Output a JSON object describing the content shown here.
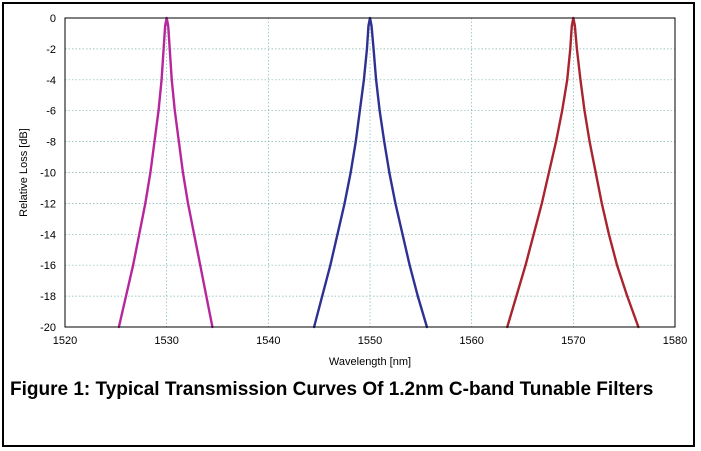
{
  "caption": "Figure 1: Typical Transmission Curves Of 1.2nm C-band Tunable Filters",
  "chart_data": {
    "type": "line",
    "title": "",
    "xlabel": "Wavelength [nm]",
    "ylabel": "Relative Loss [dB]",
    "xlim": [
      1520,
      1580
    ],
    "ylim": [
      -20,
      0
    ],
    "x_ticks": [
      1520,
      1530,
      1540,
      1550,
      1560,
      1570,
      1580
    ],
    "y_ticks": [
      0,
      -2,
      -4,
      -6,
      -8,
      -10,
      -12,
      -14,
      -16,
      -18,
      -20
    ],
    "grid": true,
    "legend": "none",
    "series": [
      {
        "color": "#b5279b",
        "x": [
          1525.3,
          1526.0,
          1526.7,
          1527.3,
          1527.9,
          1528.4,
          1528.8,
          1529.2,
          1529.5,
          1529.7,
          1529.85,
          1530.0,
          1530.15,
          1530.3,
          1530.5,
          1530.8,
          1531.2,
          1531.6,
          1532.1,
          1532.7,
          1533.3,
          1533.9,
          1534.5
        ],
        "y": [
          -20,
          -18,
          -16,
          -14,
          -12,
          -10,
          -8,
          -6,
          -4,
          -2,
          -0.5,
          0,
          -0.5,
          -2,
          -4,
          -6,
          -8,
          -10,
          -12,
          -14,
          -16,
          -18,
          -20
        ]
      },
      {
        "color": "#2e3192",
        "x": [
          1544.5,
          1545.3,
          1546.1,
          1546.8,
          1547.5,
          1548.1,
          1548.6,
          1549.0,
          1549.4,
          1549.7,
          1549.85,
          1550.0,
          1550.15,
          1550.35,
          1550.6,
          1550.95,
          1551.4,
          1551.9,
          1552.5,
          1553.2,
          1553.9,
          1554.7,
          1555.6
        ],
        "y": [
          -20,
          -18,
          -16,
          -14,
          -12,
          -10,
          -8,
          -6,
          -4,
          -2,
          -0.5,
          0,
          -0.5,
          -2,
          -4,
          -6,
          -8,
          -10,
          -12,
          -14,
          -16,
          -18,
          -20
        ]
      },
      {
        "color": "#a8242e",
        "x": [
          1563.5,
          1564.4,
          1565.3,
          1566.1,
          1566.9,
          1567.6,
          1568.3,
          1568.9,
          1569.4,
          1569.7,
          1569.85,
          1570.0,
          1570.15,
          1570.35,
          1570.7,
          1571.1,
          1571.6,
          1572.2,
          1572.8,
          1573.5,
          1574.3,
          1575.3,
          1576.4
        ],
        "y": [
          -20,
          -18,
          -16,
          -14,
          -12,
          -10,
          -8,
          -6,
          -4,
          -2,
          -0.5,
          0,
          -0.5,
          -2,
          -4,
          -6,
          -8,
          -10,
          -12,
          -14,
          -16,
          -18,
          -20
        ]
      }
    ]
  }
}
